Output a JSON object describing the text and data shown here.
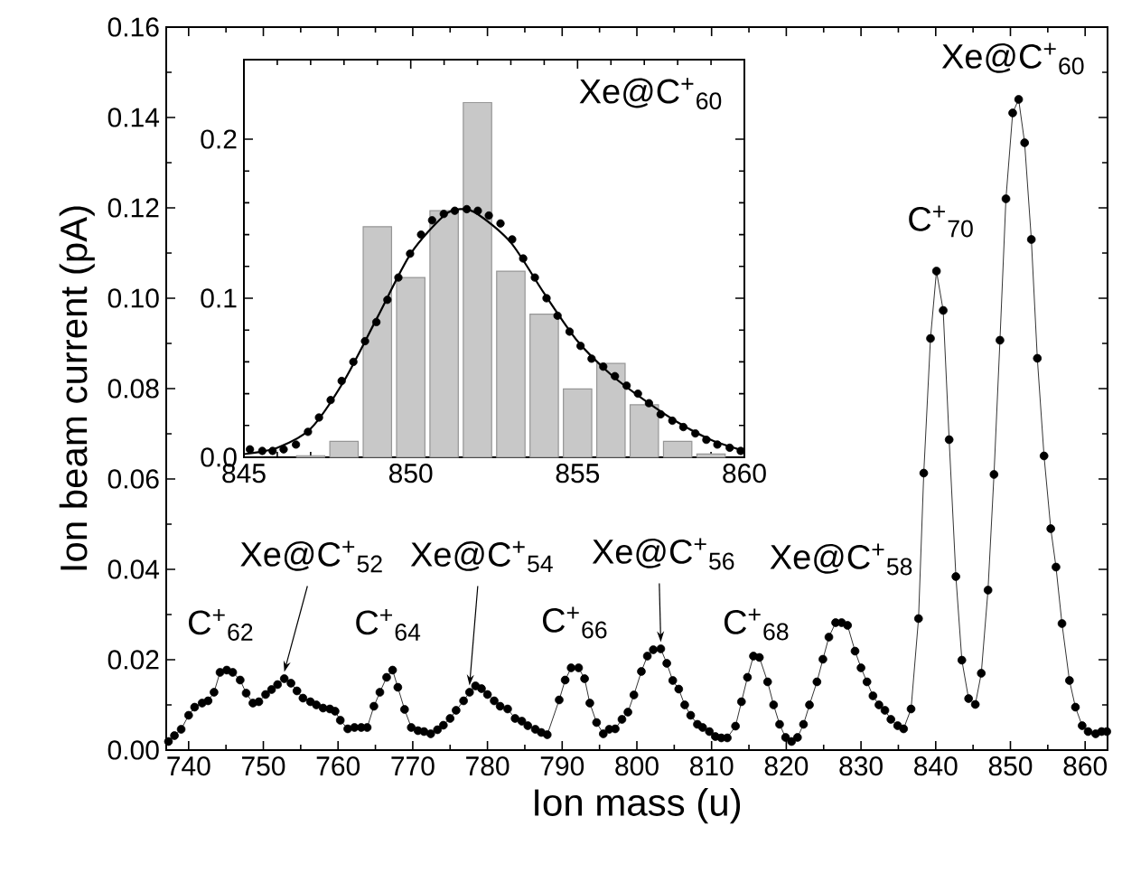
{
  "chart_data": [
    {
      "type": "line",
      "xlabel": "Ion mass (u)",
      "ylabel": "Ion beam current (pA)",
      "color": "#000000",
      "marker": "circle",
      "x": [
        737.3,
        738.1,
        739.0,
        740.0,
        740.8,
        741.8,
        742.6,
        743.4,
        744.2,
        745.1,
        745.9,
        746.9,
        747.7,
        748.6,
        749.4,
        750.3,
        751.1,
        751.9,
        752.8,
        753.7,
        754.5,
        755.3,
        756.3,
        757.1,
        758.0,
        758.9,
        759.6,
        760.3,
        761.3,
        762.2,
        763.1,
        763.9,
        764.8,
        765.6,
        766.5,
        767.3,
        768.0,
        768.9,
        769.8,
        770.7,
        771.5,
        772.4,
        773.3,
        774.1,
        775.0,
        775.8,
        776.8,
        777.6,
        778.4,
        779.2,
        780.0,
        780.9,
        781.7,
        782.7,
        783.7,
        784.6,
        785.4,
        786.4,
        787.2,
        788.0,
        789.6,
        790.4,
        791.2,
        792.2,
        793.0,
        793.7,
        794.6,
        795.5,
        796.3,
        797.1,
        798.0,
        798.8,
        799.6,
        800.6,
        801.4,
        802.2,
        803.2,
        804.0,
        804.8,
        805.6,
        806.4,
        807.2,
        808.1,
        808.8,
        809.7,
        810.5,
        811.3,
        812.1,
        813.2,
        814.0,
        814.8,
        815.6,
        816.4,
        817.5,
        818.3,
        819.1,
        819.9,
        820.7,
        821.5,
        822.3,
        823.1,
        824.1,
        824.9,
        825.7,
        826.6,
        827.4,
        828.2,
        829.2,
        830.0,
        830.8,
        831.6,
        832.4,
        833.2,
        834.0,
        834.9,
        835.7,
        836.7,
        837.7,
        838.4,
        839.3,
        840.1,
        841.0,
        841.8,
        842.7,
        843.5,
        844.4,
        845.3,
        846.1,
        847.0,
        847.8,
        848.6,
        849.4,
        850.3,
        851.1,
        851.9,
        852.8,
        853.6,
        854.5,
        855.4,
        856.1,
        856.9,
        857.9,
        858.7,
        859.6,
        860.4,
        861.4,
        862.2,
        862.9
      ],
      "values": [
        0.0019,
        0.0032,
        0.0046,
        0.0077,
        0.0095,
        0.0104,
        0.0109,
        0.0128,
        0.0172,
        0.0177,
        0.0172,
        0.0155,
        0.0126,
        0.0104,
        0.0107,
        0.0123,
        0.0134,
        0.0145,
        0.0158,
        0.0148,
        0.0131,
        0.0115,
        0.0107,
        0.01,
        0.0093,
        0.0091,
        0.0086,
        0.0066,
        0.0047,
        0.005,
        0.005,
        0.005,
        0.0097,
        0.0128,
        0.0161,
        0.0177,
        0.0139,
        0.009,
        0.005,
        0.0043,
        0.0041,
        0.0036,
        0.0045,
        0.0055,
        0.007,
        0.0088,
        0.0109,
        0.0128,
        0.0142,
        0.0136,
        0.0123,
        0.0109,
        0.0097,
        0.0091,
        0.007,
        0.0064,
        0.0054,
        0.0046,
        0.0039,
        0.0034,
        0.0111,
        0.0155,
        0.0182,
        0.0182,
        0.0158,
        0.0104,
        0.0061,
        0.0036,
        0.0046,
        0.0047,
        0.0068,
        0.0084,
        0.0122,
        0.0174,
        0.0208,
        0.0222,
        0.0224,
        0.0192,
        0.0154,
        0.0135,
        0.01,
        0.0077,
        0.0057,
        0.005,
        0.0041,
        0.003,
        0.0027,
        0.0027,
        0.0053,
        0.0107,
        0.0161,
        0.0208,
        0.0205,
        0.0151,
        0.01,
        0.0057,
        0.0028,
        0.0019,
        0.0028,
        0.0057,
        0.01,
        0.0151,
        0.0201,
        0.025,
        0.0282,
        0.0282,
        0.0276,
        0.0219,
        0.0182,
        0.0151,
        0.012,
        0.01,
        0.0088,
        0.0068,
        0.0054,
        0.0047,
        0.0091,
        0.0291,
        0.0613,
        0.0911,
        0.106,
        0.0973,
        0.0687,
        0.0384,
        0.0199,
        0.0114,
        0.0101,
        0.017,
        0.0354,
        0.061,
        0.0907,
        0.122,
        0.141,
        0.144,
        0.1344,
        0.113,
        0.0867,
        0.0651,
        0.049,
        0.0405,
        0.028,
        0.0154,
        0.0095,
        0.0054,
        0.0041,
        0.0036,
        0.0041,
        0.0041
      ],
      "xlim": [
        737,
        863
      ],
      "ylim": [
        0,
        0.16
      ],
      "xticks": [
        740,
        750,
        760,
        770,
        780,
        790,
        800,
        810,
        820,
        830,
        840,
        850,
        860
      ],
      "yticks": [
        {
          "value": 0,
          "label": "0.00"
        },
        {
          "value": 0.02,
          "label": "0.02"
        },
        {
          "value": 0.04,
          "label": "0.04"
        },
        {
          "value": 0.06,
          "label": "0.06"
        },
        {
          "value": 0.08,
          "label": "0.08"
        },
        {
          "value": 0.1,
          "label": "0.10"
        },
        {
          "value": 0.12,
          "label": "0.12"
        },
        {
          "value": 0.14,
          "label": "0.14"
        },
        {
          "value": 0.16,
          "label": "0.16"
        }
      ],
      "annotations": [
        {
          "text": "C$^{+}$$_{62}$",
          "x": 745.1,
          "y": 0.0177
        },
        {
          "text": "Xe@C$^{+}$$_{52}$",
          "x": 752.8,
          "y": 0.0158
        },
        {
          "text": "C$^{+}$$_{64}$",
          "x": 767.3,
          "y": 0.0177
        },
        {
          "text": "Xe@C$^{+}$$_{54}$",
          "x": 777.6,
          "y": 0.0128
        },
        {
          "text": "C$^{+}$$_{66}$",
          "x": 791.7,
          "y": 0.0182
        },
        {
          "text": "Xe@C$^{+}$$_{56}$",
          "x": 803.2,
          "y": 0.0224
        },
        {
          "text": "C$^{+}$$_{68}$",
          "x": 815.6,
          "y": 0.0208
        },
        {
          "text": "Xe@C$^{+}$$_{58}$",
          "x": 827.4,
          "y": 0.0282
        },
        {
          "text": "C$^{+}$$_{70}$",
          "x": 840.1,
          "y": 0.106
        },
        {
          "text": "Xe@C$^{+}$$_{60}$",
          "x": 851.1,
          "y": 0.144
        }
      ]
    },
    {
      "type": "bar",
      "title": "Xe@C$^{+}$$_{60}$",
      "xlim": [
        845,
        860
      ],
      "ylim": [
        0,
        0.25
      ],
      "xticks": [
        845,
        850,
        855,
        860
      ],
      "yticks": [
        {
          "value": 0,
          "label": "0.0"
        },
        {
          "value": 0.1,
          "label": "0.1"
        },
        {
          "value": 0.2,
          "label": "0.2"
        }
      ],
      "series": [
        {
          "type": "bar",
          "color": "#c8c8c8",
          "x": [
            847,
            848,
            849,
            850,
            851,
            852,
            853,
            854,
            855,
            856,
            857,
            858,
            859
          ],
          "values": [
            0.001,
            0.01,
            0.145,
            0.113,
            0.155,
            0.223,
            0.117,
            0.09,
            0.043,
            0.059,
            0.033,
            0.01,
            0.002
          ]
        },
        {
          "type": "scatter",
          "color": "#000000",
          "x": [
            845.18,
            845.55,
            845.86,
            846.19,
            846.56,
            846.92,
            847.25,
            847.6,
            847.93,
            848.28,
            848.63,
            848.97,
            849.3,
            849.63,
            849.98,
            850.31,
            850.64,
            850.99,
            851.32,
            851.68,
            852.01,
            852.34,
            852.69,
            853.04,
            853.37,
            853.72,
            854.07,
            854.4,
            854.76,
            855.09,
            855.42,
            855.77,
            856.12,
            856.47,
            856.81,
            857.14,
            857.49,
            857.84,
            858.17,
            858.53,
            858.86,
            859.19,
            859.56,
            859.89
          ],
          "values": [
            0.005,
            0.004,
            0.004,
            0.005,
            0.008,
            0.016,
            0.025,
            0.036,
            0.048,
            0.06,
            0.073,
            0.085,
            0.099,
            0.113,
            0.128,
            0.14,
            0.149,
            0.153,
            0.155,
            0.156,
            0.155,
            0.152,
            0.147,
            0.137,
            0.125,
            0.113,
            0.1,
            0.089,
            0.079,
            0.07,
            0.062,
            0.057,
            0.051,
            0.045,
            0.04,
            0.034,
            0.027,
            0.023,
            0.019,
            0.015,
            0.011,
            0.008,
            0.006,
            0.004
          ]
        },
        {
          "type": "line",
          "color": "#000000",
          "x": [
            845,
            846,
            847,
            848,
            849,
            850,
            851,
            851.5,
            852,
            853,
            854,
            855,
            856,
            857,
            858,
            859,
            860
          ],
          "values": [
            0.002,
            0.006,
            0.018,
            0.048,
            0.088,
            0.128,
            0.152,
            0.156,
            0.153,
            0.135,
            0.103,
            0.073,
            0.052,
            0.036,
            0.022,
            0.011,
            0.004
          ]
        }
      ]
    }
  ]
}
